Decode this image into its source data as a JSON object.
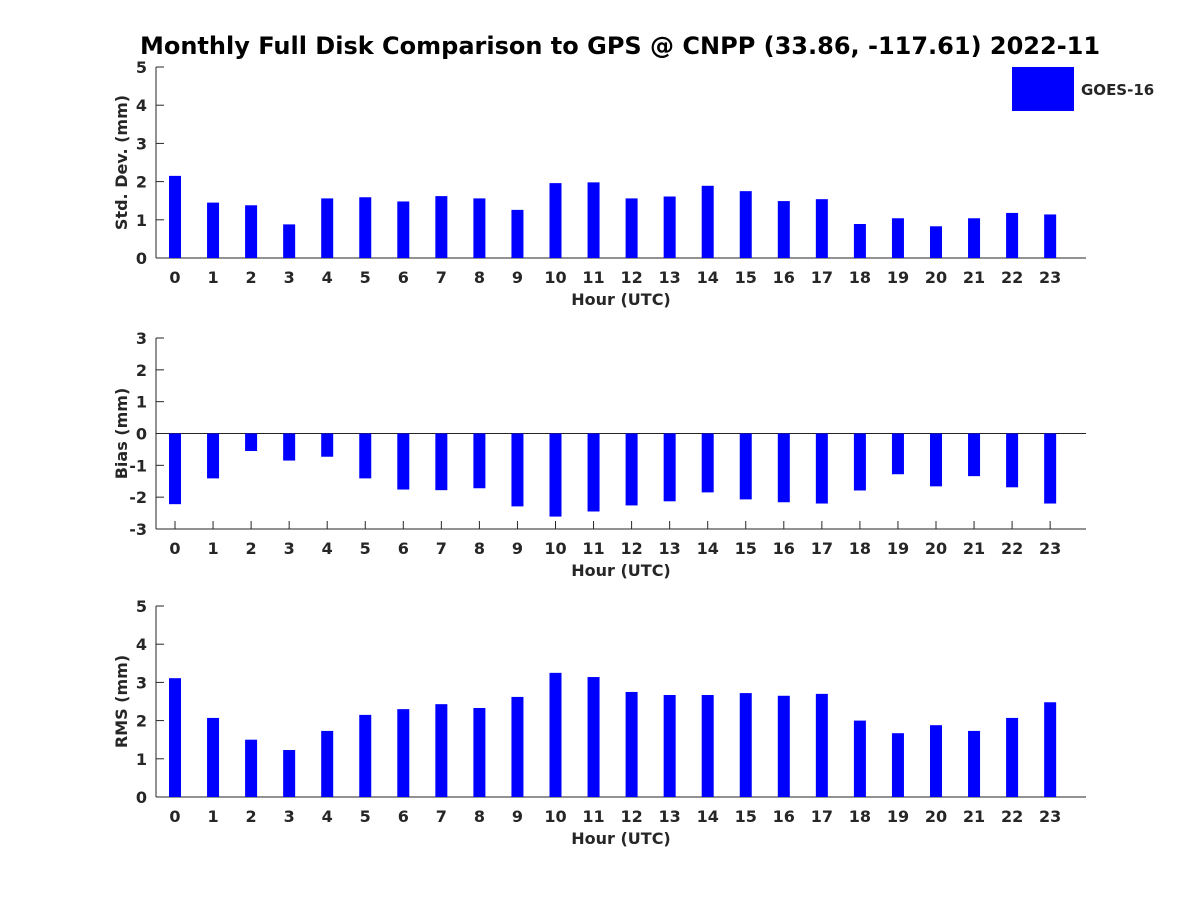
{
  "title": "Monthly Full Disk Comparison to GPS @ CNPP (33.86, -117.61) 2022-11",
  "legend": {
    "label": "GOES-16",
    "color": "#0000ff",
    "placement": "top-right"
  },
  "chart_data": [
    {
      "type": "bar",
      "xlabel": "Hour (UTC)",
      "ylabel": "Std. Dev. (mm)",
      "ylim": [
        0,
        5
      ],
      "yticks": [
        0,
        1,
        2,
        3,
        4,
        5
      ],
      "categories": [
        "0",
        "1",
        "2",
        "3",
        "4",
        "5",
        "6",
        "7",
        "8",
        "9",
        "10",
        "11",
        "12",
        "13",
        "14",
        "15",
        "16",
        "17",
        "18",
        "19",
        "20",
        "21",
        "22",
        "23"
      ],
      "series": [
        {
          "name": "GOES-16",
          "color": "#0000ff",
          "values": [
            2.15,
            1.45,
            1.38,
            0.88,
            1.56,
            1.59,
            1.48,
            1.62,
            1.56,
            1.26,
            1.96,
            1.98,
            1.56,
            1.61,
            1.89,
            1.75,
            1.49,
            1.54,
            0.89,
            1.04,
            0.83,
            1.04,
            1.18,
            1.14
          ]
        }
      ],
      "grid": false
    },
    {
      "type": "bar",
      "xlabel": "Hour (UTC)",
      "ylabel": "Bias (mm)",
      "ylim": [
        -3,
        3
      ],
      "yticks": [
        -3,
        -2,
        -1,
        0,
        1,
        2,
        3
      ],
      "categories": [
        "0",
        "1",
        "2",
        "3",
        "4",
        "5",
        "6",
        "7",
        "8",
        "9",
        "10",
        "11",
        "12",
        "13",
        "14",
        "15",
        "16",
        "17",
        "18",
        "19",
        "20",
        "21",
        "22",
        "23"
      ],
      "series": [
        {
          "name": "GOES-16",
          "color": "#0000ff",
          "values": [
            -2.22,
            -1.41,
            -0.55,
            -0.85,
            -0.73,
            -1.41,
            -1.76,
            -1.78,
            -1.72,
            -2.29,
            -2.61,
            -2.45,
            -2.26,
            -2.13,
            -1.85,
            -2.07,
            -2.16,
            -2.2,
            -1.79,
            -1.28,
            -1.66,
            -1.34,
            -1.69,
            -2.2
          ]
        }
      ],
      "grid": false
    },
    {
      "type": "bar",
      "xlabel": "Hour (UTC)",
      "ylabel": "RMS (mm)",
      "ylim": [
        0,
        5
      ],
      "yticks": [
        0,
        1,
        2,
        3,
        4,
        5
      ],
      "categories": [
        "0",
        "1",
        "2",
        "3",
        "4",
        "5",
        "6",
        "7",
        "8",
        "9",
        "10",
        "11",
        "12",
        "13",
        "14",
        "15",
        "16",
        "17",
        "18",
        "19",
        "20",
        "21",
        "22",
        "23"
      ],
      "series": [
        {
          "name": "GOES-16",
          "color": "#0000ff",
          "values": [
            3.11,
            2.07,
            1.5,
            1.23,
            1.73,
            2.15,
            2.3,
            2.43,
            2.33,
            2.62,
            3.25,
            3.14,
            2.75,
            2.67,
            2.67,
            2.72,
            2.65,
            2.7,
            2.0,
            1.67,
            1.88,
            1.73,
            2.07,
            2.48
          ]
        }
      ],
      "grid": false
    }
  ]
}
